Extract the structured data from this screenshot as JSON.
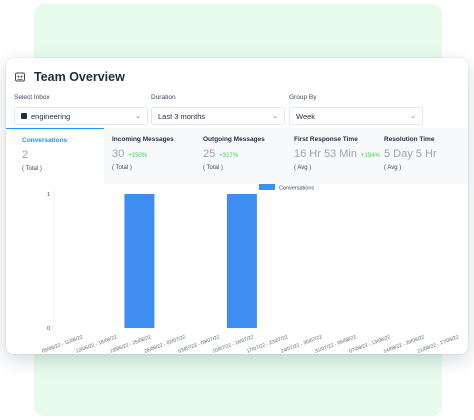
{
  "header": {
    "title": "Team Overview"
  },
  "filters": {
    "inbox": {
      "label": "Select Inbox",
      "value": "engineering"
    },
    "duration": {
      "label": "Duration",
      "value": "Last 3 months"
    },
    "group_by": {
      "label": "Group By",
      "value": "Week"
    }
  },
  "metrics": [
    {
      "label": "Conversations",
      "value": "2",
      "delta": "",
      "sub": "( Total )"
    },
    {
      "label": "Incoming Messages",
      "value": "30",
      "delta": "+150%",
      "sub": "( Total )"
    },
    {
      "label": "Outgoing Messages",
      "value": "25",
      "delta": "+317%",
      "sub": "( Total )"
    },
    {
      "label": "First Response Time",
      "value": "16 Hr 53 Min",
      "delta": "+154%",
      "sub": "( Avg )"
    },
    {
      "label": "Resolution Time",
      "value": "5 Day 5 Hr",
      "delta": "",
      "sub": "( Avg )"
    }
  ],
  "colors": {
    "accent": "#1f93ff",
    "bar": "#3d8ef0",
    "positive": "#44ce4b"
  },
  "icons": {
    "title": "team-icon",
    "inbox": "inbox-icon",
    "dropdown": "chevron-down-icon"
  },
  "chart_data": {
    "type": "bar",
    "legend": "Conversations",
    "legend_position": "top-center",
    "categories": [
      "05/06/22 - 11/06/22",
      "12/06/22 - 18/06/22",
      "19/06/22 - 25/06/22",
      "26/06/22 - 02/07/22",
      "03/07/22 - 09/07/22",
      "10/07/22 - 16/07/22",
      "17/07/22 - 23/07/22",
      "24/07/22 - 30/07/22",
      "31/07/22 - 06/08/22",
      "07/08/22 - 13/08/22",
      "14/08/22 - 20/08/22",
      "21/08/22 - 27/08/22"
    ],
    "series": [
      {
        "name": "Conversations",
        "values": [
          0,
          0,
          1,
          0,
          0,
          1,
          0,
          0,
          0,
          0,
          0,
          0
        ]
      }
    ],
    "yticks": [
      "0",
      "1"
    ],
    "ylim": [
      0,
      1
    ]
  }
}
